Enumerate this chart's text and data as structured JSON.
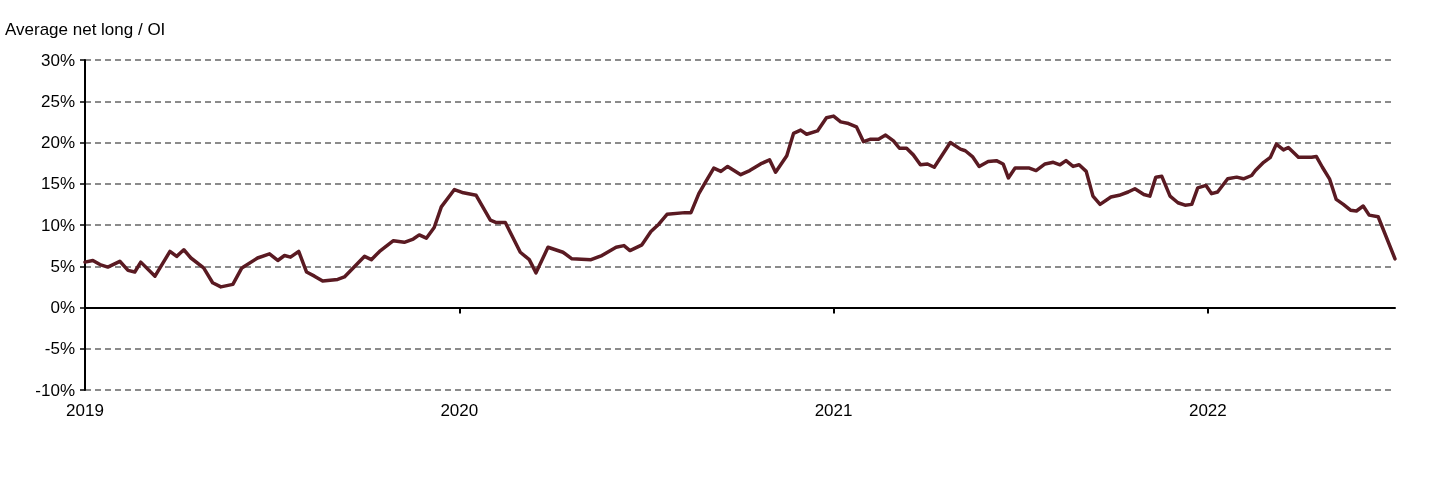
{
  "chart_data": {
    "type": "line",
    "ylabel": "Average net long / OI",
    "grid": "y",
    "marker": "none",
    "line_style": "solid",
    "xlim": [
      2019,
      2022.5
    ],
    "xticks": [
      2019,
      2020,
      2021,
      2022
    ],
    "ylim": [
      -10,
      30
    ],
    "yticks": [
      {
        "value": -10,
        "label": "-10%"
      },
      {
        "value": -5,
        "label": "-5%"
      },
      {
        "value": 0,
        "label": "0%"
      },
      {
        "value": 5,
        "label": "5%"
      },
      {
        "value": 10,
        "label": "10%"
      },
      {
        "value": 15,
        "label": "15%"
      },
      {
        "value": 20,
        "label": "20%"
      },
      {
        "value": 25,
        "label": "25%"
      },
      {
        "value": 30,
        "label": "30%"
      }
    ],
    "x": [
      2019.0,
      2019.021,
      2019.04,
      2019.061,
      2019.093,
      2019.115,
      2019.133,
      2019.149,
      2019.187,
      2019.227,
      2019.245,
      2019.264,
      2019.283,
      2019.317,
      2019.341,
      2019.363,
      2019.395,
      2019.419,
      2019.461,
      2019.493,
      2019.515,
      2019.533,
      2019.549,
      2019.571,
      2019.592,
      2019.613,
      2019.635,
      2019.675,
      2019.693,
      2019.723,
      2019.747,
      2019.765,
      2019.787,
      2019.824,
      2019.853,
      2019.877,
      2019.893,
      2019.912,
      2019.933,
      2019.952,
      2019.987,
      2020.011,
      2020.045,
      2020.083,
      2020.099,
      2020.123,
      2020.163,
      2020.187,
      2020.205,
      2020.237,
      2020.277,
      2020.301,
      2020.352,
      2020.381,
      2020.419,
      2020.44,
      2020.456,
      2020.488,
      2020.512,
      2020.533,
      2020.555,
      2020.603,
      2020.619,
      2020.64,
      2020.659,
      2020.68,
      2020.699,
      2020.717,
      2020.752,
      2020.776,
      2020.805,
      2020.829,
      2020.845,
      2020.875,
      2020.893,
      2020.912,
      2020.928,
      2020.957,
      2020.981,
      2021.0,
      2021.019,
      2021.04,
      2021.061,
      2021.08,
      2021.099,
      2021.12,
      2021.139,
      2021.16,
      2021.176,
      2021.195,
      2021.213,
      2021.232,
      2021.251,
      2021.269,
      2021.312,
      2021.339,
      2021.352,
      2021.371,
      2021.389,
      2021.413,
      2021.435,
      2021.453,
      2021.467,
      2021.485,
      2021.523,
      2021.541,
      2021.565,
      2021.587,
      2021.605,
      2021.621,
      2021.64,
      2021.656,
      2021.675,
      2021.693,
      2021.712,
      2021.741,
      2021.763,
      2021.787,
      2021.805,
      2021.829,
      2021.845,
      2021.861,
      2021.877,
      2021.899,
      2021.92,
      2021.939,
      2021.957,
      2021.973,
      2021.995,
      2022.01,
      2022.026,
      2022.053,
      2022.077,
      2022.095,
      2022.117,
      2022.127,
      2022.149,
      2022.167,
      2022.183,
      2022.202,
      2022.215,
      2022.231,
      2022.242,
      2022.277,
      2022.29,
      2022.306,
      2022.325,
      2022.343,
      2022.362,
      2022.381,
      2022.397,
      2022.415,
      2022.431,
      2022.455,
      2022.5
    ],
    "series": [
      {
        "color": "#5a1a22",
        "values": [
          5.5,
          5.7,
          5.2,
          4.9,
          5.6,
          4.5,
          4.3,
          5.5,
          3.8,
          6.8,
          6.2,
          7.0,
          6.0,
          4.8,
          3.0,
          2.5,
          2.8,
          4.8,
          6.0,
          6.5,
          5.7,
          6.3,
          6.1,
          6.8,
          4.3,
          3.8,
          3.2,
          3.4,
          3.7,
          5.1,
          6.2,
          5.8,
          6.8,
          8.1,
          7.9,
          8.3,
          8.8,
          8.4,
          9.7,
          12.2,
          14.3,
          13.9,
          13.6,
          10.6,
          10.3,
          10.3,
          6.7,
          5.8,
          4.2,
          7.3,
          6.7,
          5.9,
          5.8,
          6.3,
          7.3,
          7.5,
          6.9,
          7.6,
          9.2,
          10.1,
          11.3,
          11.5,
          11.5,
          13.8,
          15.3,
          16.9,
          16.5,
          17.1,
          16.1,
          16.6,
          17.4,
          17.9,
          16.4,
          18.4,
          21.1,
          21.5,
          21.0,
          21.4,
          23.0,
          23.2,
          22.5,
          22.3,
          21.9,
          20.1,
          20.4,
          20.4,
          20.9,
          20.2,
          19.3,
          19.3,
          18.5,
          17.3,
          17.4,
          17.0,
          20.0,
          19.2,
          19.0,
          18.3,
          17.1,
          17.7,
          17.8,
          17.4,
          15.7,
          16.9,
          16.9,
          16.6,
          17.4,
          17.6,
          17.3,
          17.8,
          17.1,
          17.3,
          16.5,
          13.5,
          12.5,
          13.4,
          13.6,
          14.0,
          14.4,
          13.7,
          13.5,
          15.8,
          15.9,
          13.5,
          12.7,
          12.4,
          12.5,
          14.5,
          14.8,
          13.8,
          14.0,
          15.6,
          15.8,
          15.6,
          16.0,
          16.6,
          17.6,
          18.2,
          19.8,
          19.1,
          19.4,
          18.7,
          18.2,
          18.2,
          18.3,
          17.0,
          15.6,
          13.1,
          12.5,
          11.8,
          11.7,
          12.3,
          11.2,
          11.0,
          5.9
        ]
      }
    ]
  }
}
